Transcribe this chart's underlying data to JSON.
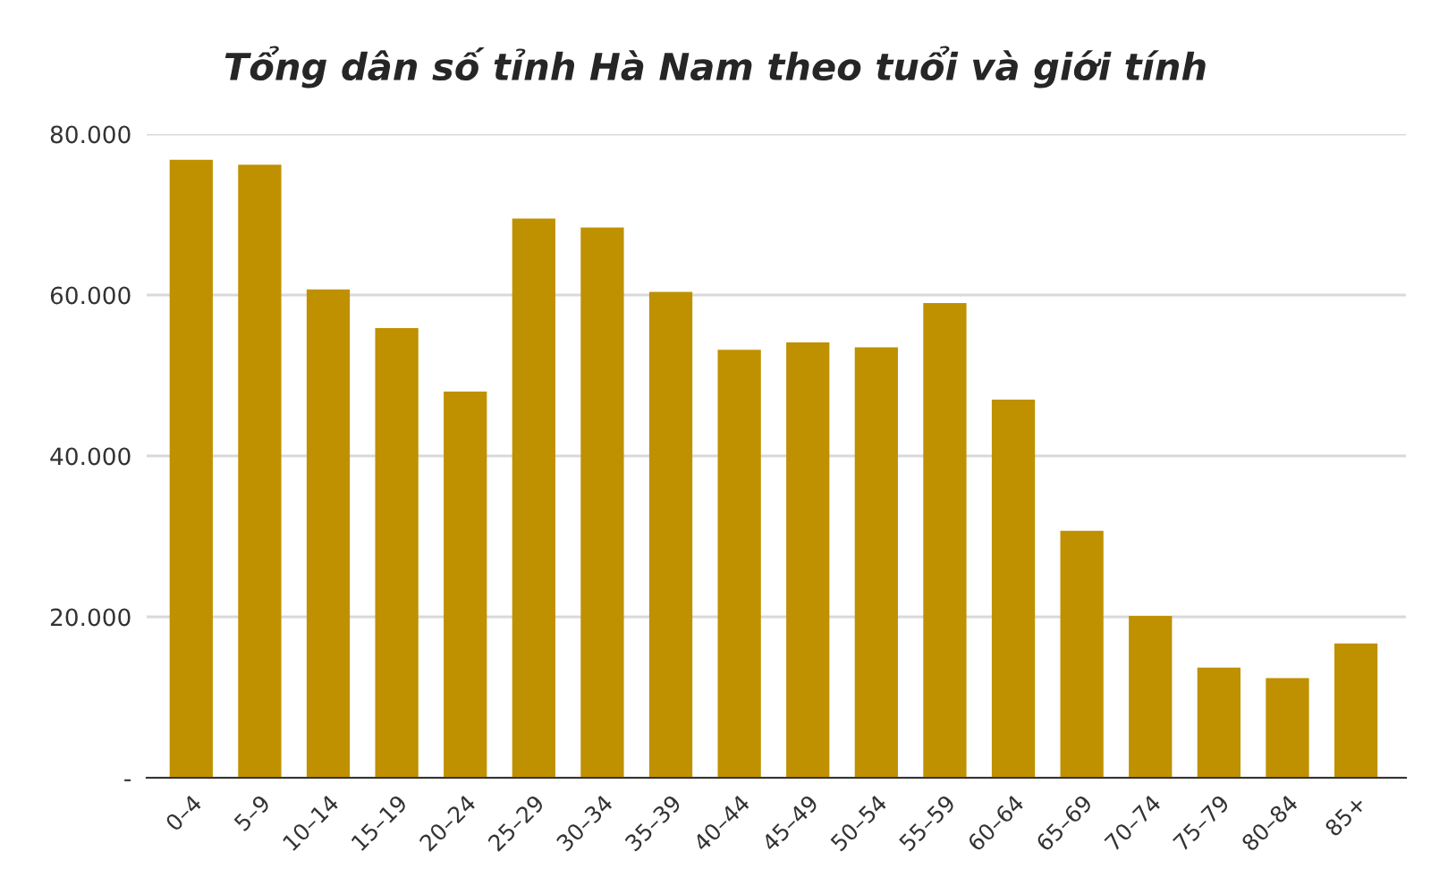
{
  "chart_data": {
    "type": "bar",
    "title": "Tổng dân số tỉnh Hà Nam theo tuổi và giới tính",
    "categories": [
      "0–4",
      "5–9",
      "10–14",
      "15–19",
      "20–24",
      "25–29",
      "30–34",
      "35–39",
      "40–44",
      "45–49",
      "50–54",
      "55–59",
      "60–64",
      "65–69",
      "70–74",
      "75–79",
      "80–84",
      "85+"
    ],
    "values": [
      76800,
      76200,
      60700,
      55900,
      48000,
      69500,
      68400,
      60400,
      53200,
      54100,
      53500,
      59000,
      47000,
      30700,
      20100,
      13700,
      12400,
      16700
    ],
    "color": "#bf9000",
    "ylim": [
      0,
      80000
    ],
    "yticks": [
      {
        "value": 0,
        "label": "-"
      },
      {
        "value": 20000,
        "label": "20.000"
      },
      {
        "value": 40000,
        "label": "40.000"
      },
      {
        "value": 60000,
        "label": "60.000"
      },
      {
        "value": 80000,
        "label": "80.000"
      }
    ],
    "grid": "y"
  }
}
